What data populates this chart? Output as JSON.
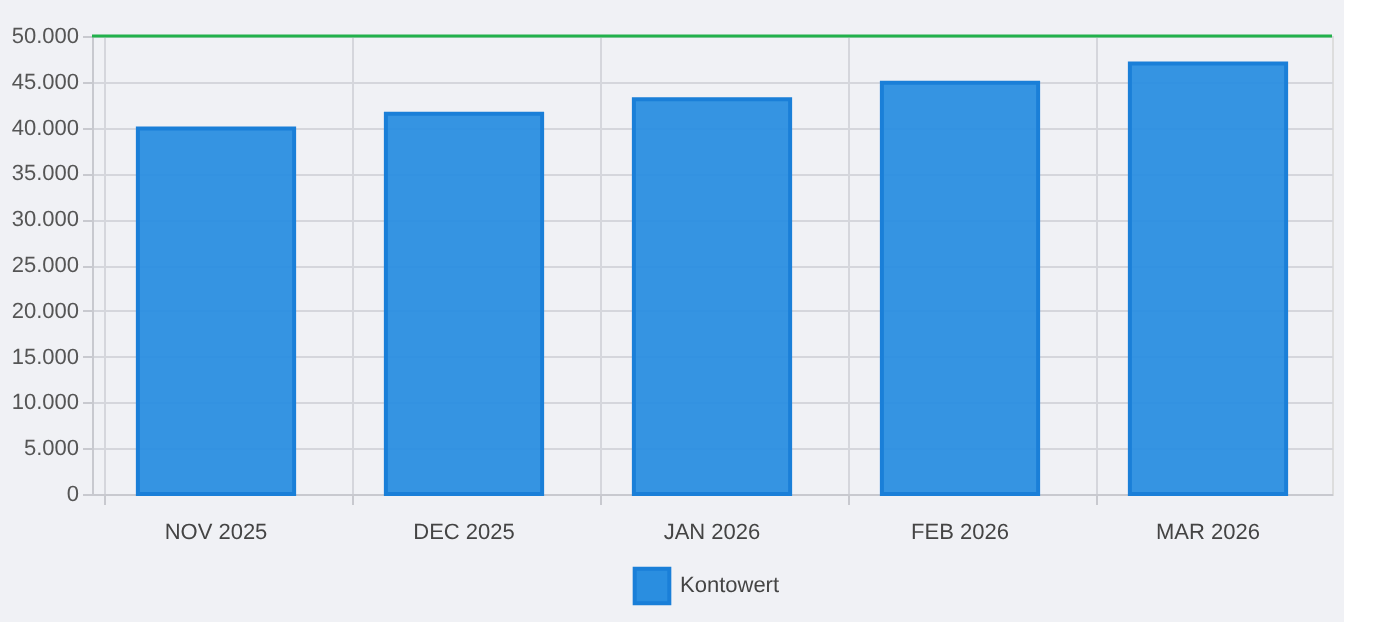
{
  "chart_data": {
    "type": "bar",
    "categories": [
      "NOV 2025",
      "DEC 2025",
      "JAN 2026",
      "FEB 2026",
      "MAR 2026"
    ],
    "series": [
      {
        "name": "Kontowert",
        "color": "#2a8ee0",
        "values": [
          39900,
          41500,
          43100,
          44900,
          47000
        ]
      }
    ],
    "ylim": [
      0,
      50000
    ],
    "yticks": [
      0,
      {
        "value": 5000,
        "label": "5.000"
      },
      {
        "value": 10000,
        "label": "10.000"
      },
      {
        "value": 15000,
        "label": "15.000"
      },
      {
        "value": 20000,
        "label": "20.000"
      },
      {
        "value": 25000,
        "label": "25.000"
      },
      {
        "value": 30000,
        "label": "30.000"
      },
      {
        "value": 35000,
        "label": "35.000"
      },
      {
        "value": 40000,
        "label": "40.000"
      },
      {
        "value": 45000,
        "label": "45.000"
      },
      {
        "value": 50000,
        "label": "50.000"
      }
    ],
    "ref_lines": [
      {
        "axis": "y",
        "value": 50000,
        "color": "#22b14c"
      }
    ],
    "grid": true,
    "legend": "bottom"
  }
}
